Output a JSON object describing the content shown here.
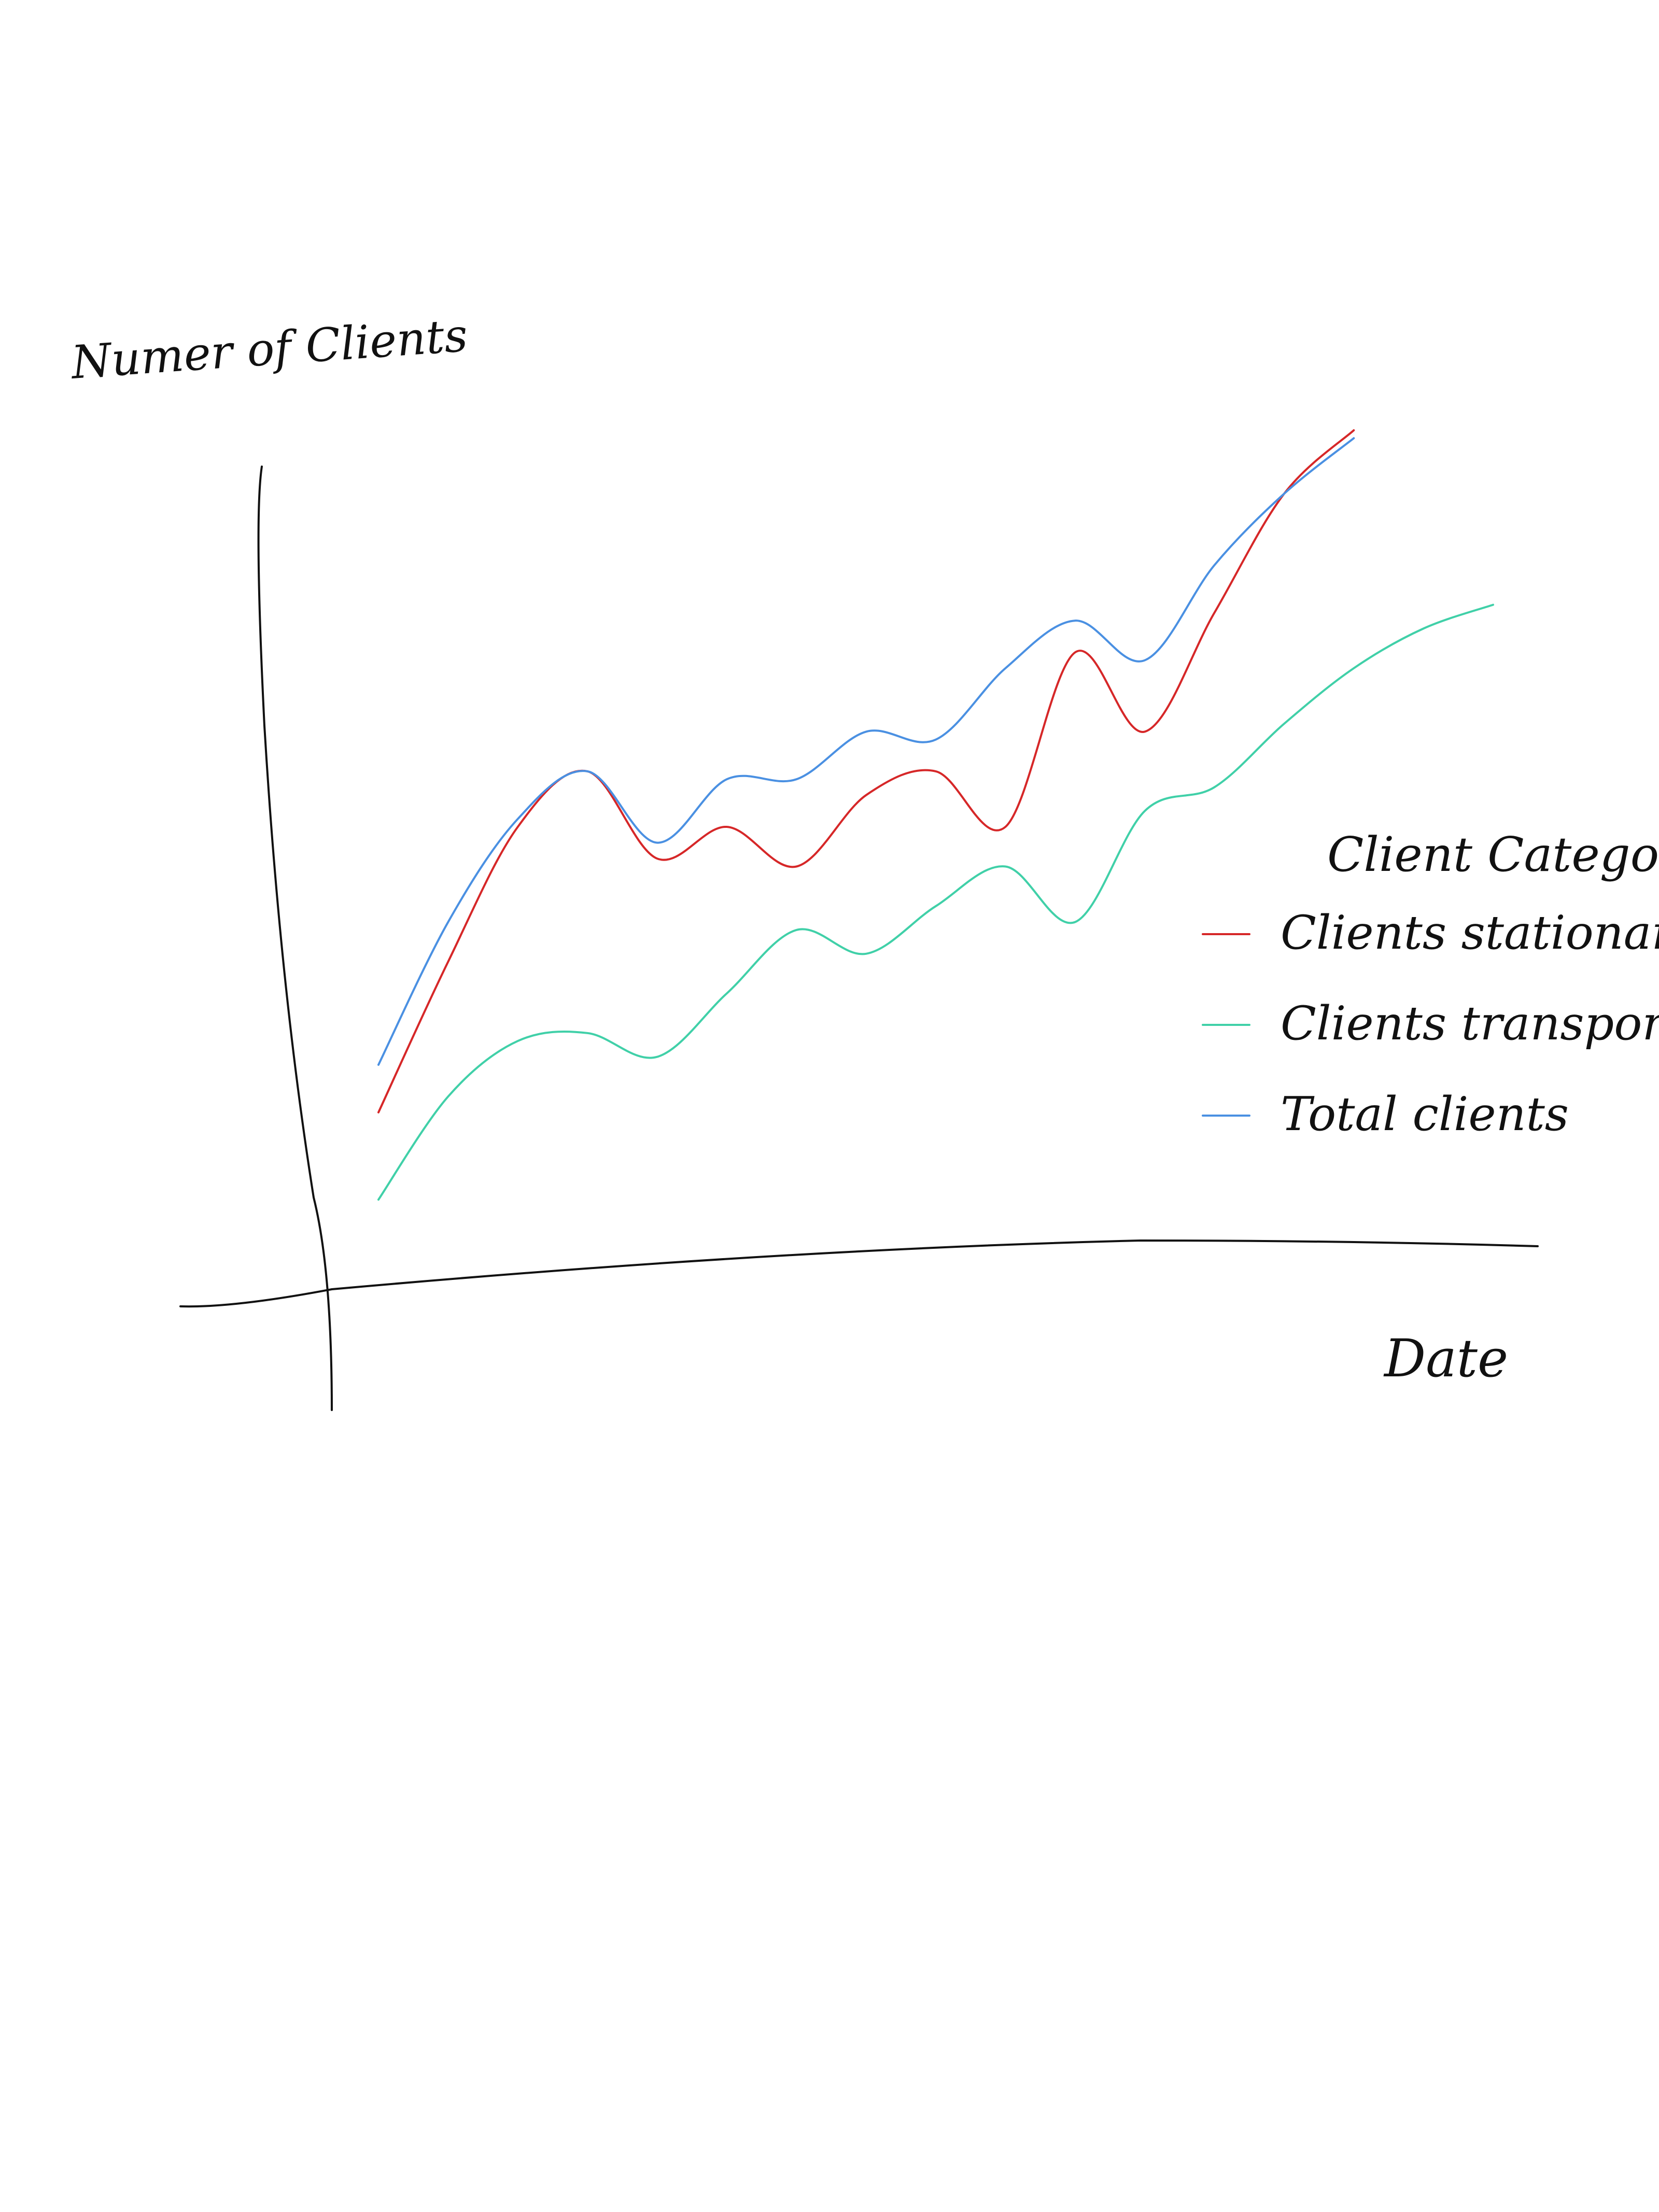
{
  "chart_data": {
    "type": "line",
    "title": "",
    "xlabel": "Date",
    "ylabel": "Numer of Clients",
    "x": [
      0,
      1,
      2,
      3,
      4,
      5,
      6,
      7,
      8,
      9,
      10,
      11,
      12,
      13,
      14,
      15,
      16
    ],
    "xlim": [
      0,
      16
    ],
    "ylim": [
      0,
      100
    ],
    "grid": false,
    "ticks": false,
    "legend": {
      "title": "Client Category",
      "placement": "right"
    },
    "series": [
      {
        "name": "Clients stationary",
        "color": "#d62728",
        "values": [
          14,
          33,
          50,
          57,
          46,
          50,
          45,
          54,
          57,
          50,
          72,
          62,
          77,
          92,
          100,
          null,
          null
        ]
      },
      {
        "name": "Clients transported",
        "color": "#40d0a8",
        "values": [
          3,
          16,
          23,
          24,
          21,
          29,
          37,
          34,
          40,
          45,
          38,
          52,
          55,
          63,
          70,
          75,
          78
        ]
      },
      {
        "name": "Total clients",
        "color": "#4a90e2",
        "values": [
          20,
          38,
          51,
          57,
          48,
          56,
          56,
          62,
          61,
          70,
          76,
          71,
          83,
          92,
          99,
          null,
          null
        ]
      }
    ]
  }
}
